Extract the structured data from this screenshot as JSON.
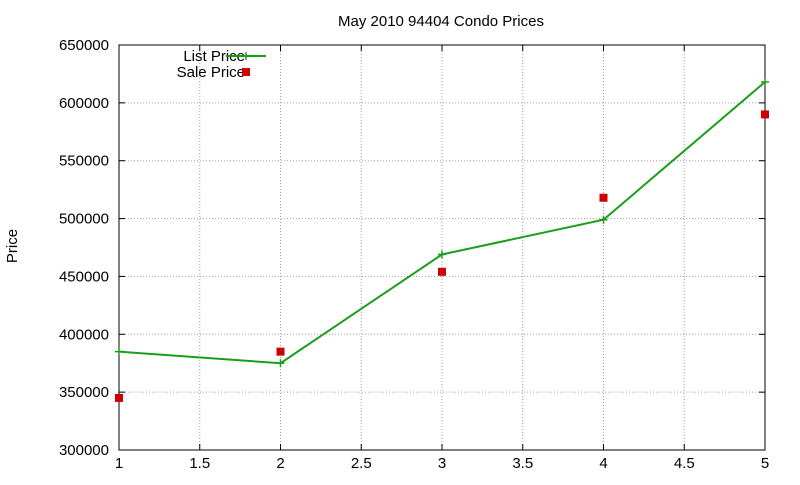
{
  "chart_data": {
    "type": "line",
    "title": "May 2010 94404 Condo Prices",
    "xlabel": "",
    "ylabel": "Price",
    "xlim": [
      1,
      5
    ],
    "ylim": [
      300000,
      650000
    ],
    "x_ticks": [
      1,
      1.5,
      2,
      2.5,
      3,
      3.5,
      4,
      4.5,
      5
    ],
    "x_tick_labels": [
      "1",
      "1.5",
      "2",
      "2.5",
      "3",
      "3.5",
      "4",
      "4.5",
      "5"
    ],
    "y_ticks": [
      300000,
      350000,
      400000,
      450000,
      500000,
      550000,
      600000,
      650000
    ],
    "y_tick_labels": [
      "300000",
      "350000",
      "400000",
      "450000",
      "500000",
      "550000",
      "600000",
      "650000"
    ],
    "grid": true,
    "legend_position": "top-left",
    "series": [
      {
        "name": "List Price",
        "style": "linespoints",
        "marker": "plus",
        "color": "#1a9e1a",
        "x": [
          1,
          2,
          3,
          4,
          5
        ],
        "y": [
          385000,
          375000,
          469000,
          499000,
          618000
        ]
      },
      {
        "name": "Sale Price",
        "style": "points",
        "marker": "square",
        "color": "#cc0000",
        "x": [
          1,
          2,
          3,
          4,
          5
        ],
        "y": [
          345000,
          385000,
          454000,
          518000,
          590000
        ]
      }
    ]
  }
}
